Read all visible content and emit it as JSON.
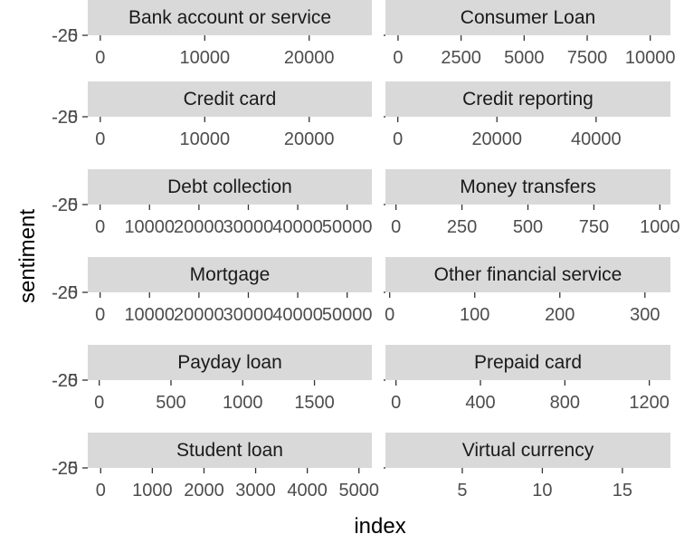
{
  "chart_data": {
    "type": "line",
    "xlabel": "index",
    "ylabel": "sentiment",
    "y_tick_labels": [
      "-20",
      "-25"
    ],
    "facets": [
      {
        "title": "Bank account or service",
        "x_ticks": [
          0,
          10000,
          20000
        ],
        "xlim": [
          -1200,
          26000
        ]
      },
      {
        "title": "Consumer Loan",
        "x_ticks": [
          0,
          2500,
          5000,
          7500,
          10000
        ],
        "xlim": [
          -500,
          10800
        ]
      },
      {
        "title": "Credit card",
        "x_ticks": [
          0,
          10000,
          20000
        ],
        "xlim": [
          -1200,
          26000
        ]
      },
      {
        "title": "Credit reporting",
        "x_ticks": [
          0,
          20000,
          40000
        ],
        "xlim": [
          -2500,
          55000
        ]
      },
      {
        "title": "Debt collection",
        "x_ticks": [
          0,
          10000,
          20000,
          30000,
          40000,
          50000
        ],
        "xlim": [
          -2500,
          55000
        ]
      },
      {
        "title": "Money transfers",
        "x_ticks": [
          0,
          250,
          500,
          750,
          1000
        ],
        "xlim": [
          -40,
          1040
        ]
      },
      {
        "title": "Mortgage",
        "x_ticks": [
          0,
          10000,
          20000,
          30000,
          40000,
          50000
        ],
        "xlim": [
          -2500,
          55000
        ]
      },
      {
        "title": "Other financial service",
        "x_ticks": [
          0,
          100,
          200,
          300
        ],
        "xlim": [
          -5,
          330
        ]
      },
      {
        "title": "Payday loan",
        "x_ticks": [
          0,
          500,
          1000,
          1500
        ],
        "xlim": [
          -80,
          1900
        ]
      },
      {
        "title": "Prepaid card",
        "x_ticks": [
          0,
          400,
          800,
          1200
        ],
        "xlim": [
          -50,
          1300
        ]
      },
      {
        "title": "Student loan",
        "x_ticks": [
          0,
          1000,
          2000,
          3000,
          4000,
          5000
        ],
        "xlim": [
          -250,
          5250
        ]
      },
      {
        "title": "Virtual currency",
        "x_ticks": [
          5,
          10,
          15
        ],
        "xlim": [
          0.2,
          18
        ]
      }
    ]
  }
}
